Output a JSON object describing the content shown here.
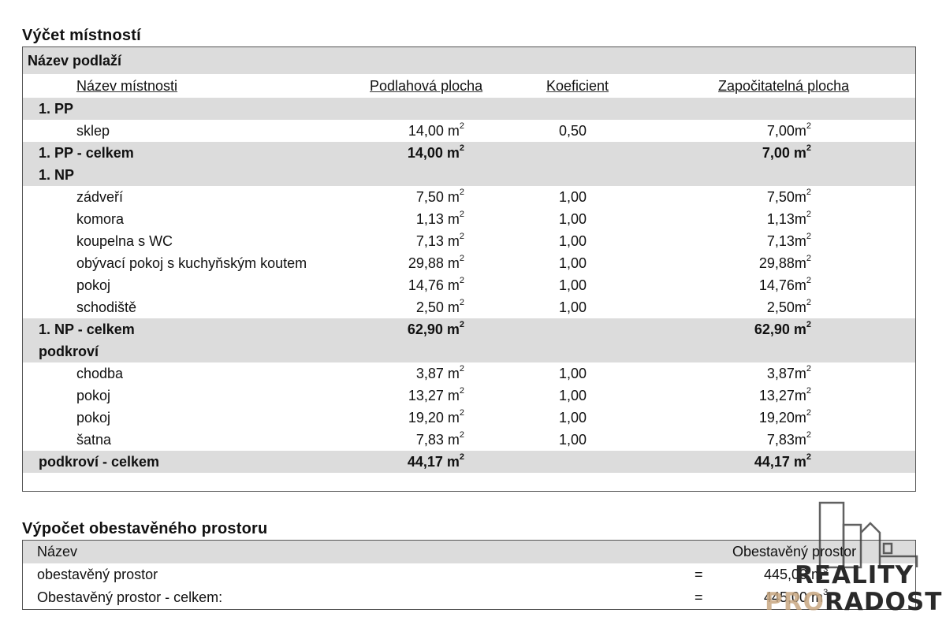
{
  "rooms_section": {
    "title": "Výčet místností",
    "floor_header": "Název podlaží",
    "columns": {
      "name": "Název místnosti",
      "floor_area": "Podlahová plocha",
      "coefficient": "Koeficient",
      "countable_area": "Započitatelná plocha"
    },
    "groups": [
      {
        "name": "1. PP",
        "rows": [
          {
            "name": "sklep",
            "area": "14,00 m",
            "coef": "0,50",
            "counted": "7,00m"
          }
        ],
        "total": {
          "label": "1. PP - celkem",
          "area": "14,00 m",
          "counted": "7,00 m"
        }
      },
      {
        "name": "1. NP",
        "rows": [
          {
            "name": "zádveří",
            "area": "7,50 m",
            "coef": "1,00",
            "counted": "7,50m"
          },
          {
            "name": "komora",
            "area": "1,13 m",
            "coef": "1,00",
            "counted": "1,13m"
          },
          {
            "name": "koupelna s WC",
            "area": "7,13 m",
            "coef": "1,00",
            "counted": "7,13m"
          },
          {
            "name": "obývací pokoj s kuchyňským koutem",
            "area": "29,88 m",
            "coef": "1,00",
            "counted": "29,88m"
          },
          {
            "name": "pokoj",
            "area": "14,76 m",
            "coef": "1,00",
            "counted": "14,76m"
          },
          {
            "name": "schodiště",
            "area": "2,50 m",
            "coef": "1,00",
            "counted": "2,50m"
          }
        ],
        "total": {
          "label": "1. NP - celkem",
          "area": "62,90 m",
          "counted": "62,90 m"
        }
      },
      {
        "name": "podkroví",
        "rows": [
          {
            "name": "chodba",
            "area": "3,87 m",
            "coef": "1,00",
            "counted": "3,87m"
          },
          {
            "name": "pokoj",
            "area": "13,27 m",
            "coef": "1,00",
            "counted": "13,27m"
          },
          {
            "name": "pokoj",
            "area": "19,20 m",
            "coef": "1,00",
            "counted": "19,20m"
          },
          {
            "name": "šatna",
            "area": "7,83 m",
            "coef": "1,00",
            "counted": "7,83m"
          }
        ],
        "total": {
          "label": "podkroví - celkem",
          "area": "44,17 m",
          "counted": "44,17 m"
        }
      }
    ],
    "unit_exponent": "2"
  },
  "volume_section": {
    "title": "Výpočet obestavěného prostoru",
    "header_name": "Název",
    "header_value": "Obestavěný prostor",
    "rows": [
      {
        "name": "obestavěný prostor",
        "eq": "=",
        "value": "445,00 m"
      },
      {
        "name": "Obestavěný prostor - celkem:",
        "eq": "=",
        "value": "445,00 m"
      }
    ],
    "unit_exponent": "3"
  },
  "watermark": {
    "line1": "REALITY",
    "line2_a": "PRO",
    "line2_b": "RADOST"
  }
}
